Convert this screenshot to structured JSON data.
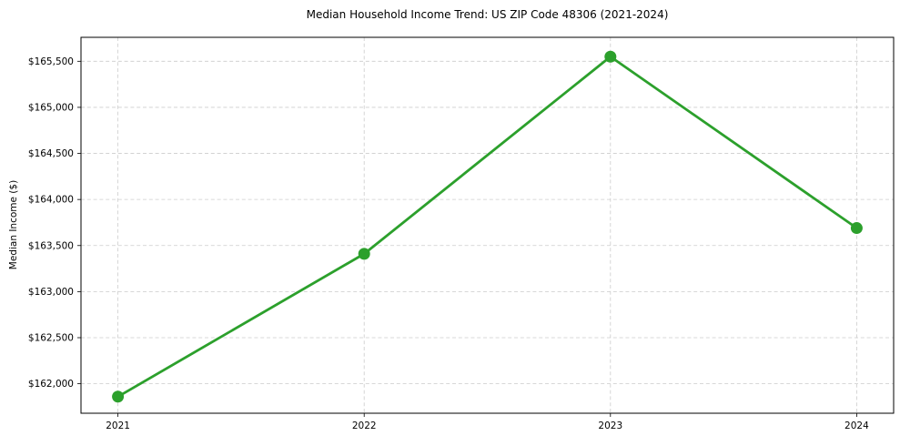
{
  "chart_data": {
    "type": "line",
    "title": "Median Household Income Trend: US ZIP Code 48306 (2021-2024)",
    "xlabel": "",
    "ylabel": "Median Income ($)",
    "x": [
      2021,
      2022,
      2023,
      2024
    ],
    "series": [
      {
        "name": "Median household income",
        "values": [
          161860,
          163410,
          165550,
          163690
        ],
        "color": "#2ca02c"
      }
    ],
    "xticks": [
      2021,
      2022,
      2023,
      2024
    ],
    "xtick_labels": [
      "2021",
      "2022",
      "2023",
      "2024"
    ],
    "yticks": [
      162000,
      162500,
      163000,
      163500,
      164000,
      164500,
      165000,
      165500
    ],
    "ytick_labels": [
      "$162,000",
      "$162,500",
      "$163,000",
      "$163,500",
      "$164,000",
      "$164,500",
      "$165,000",
      "$165,500"
    ],
    "xlim": [
      2020.85,
      2024.15
    ],
    "ylim": [
      161680,
      165760
    ],
    "grid": true,
    "grid_color": "#cccccc",
    "grid_dash": "4 2.8",
    "spine_color": "#000000",
    "background": "#ffffff",
    "legend": "none",
    "marker": "circle",
    "marker_radius": 6.5,
    "line_width": 2.8
  }
}
